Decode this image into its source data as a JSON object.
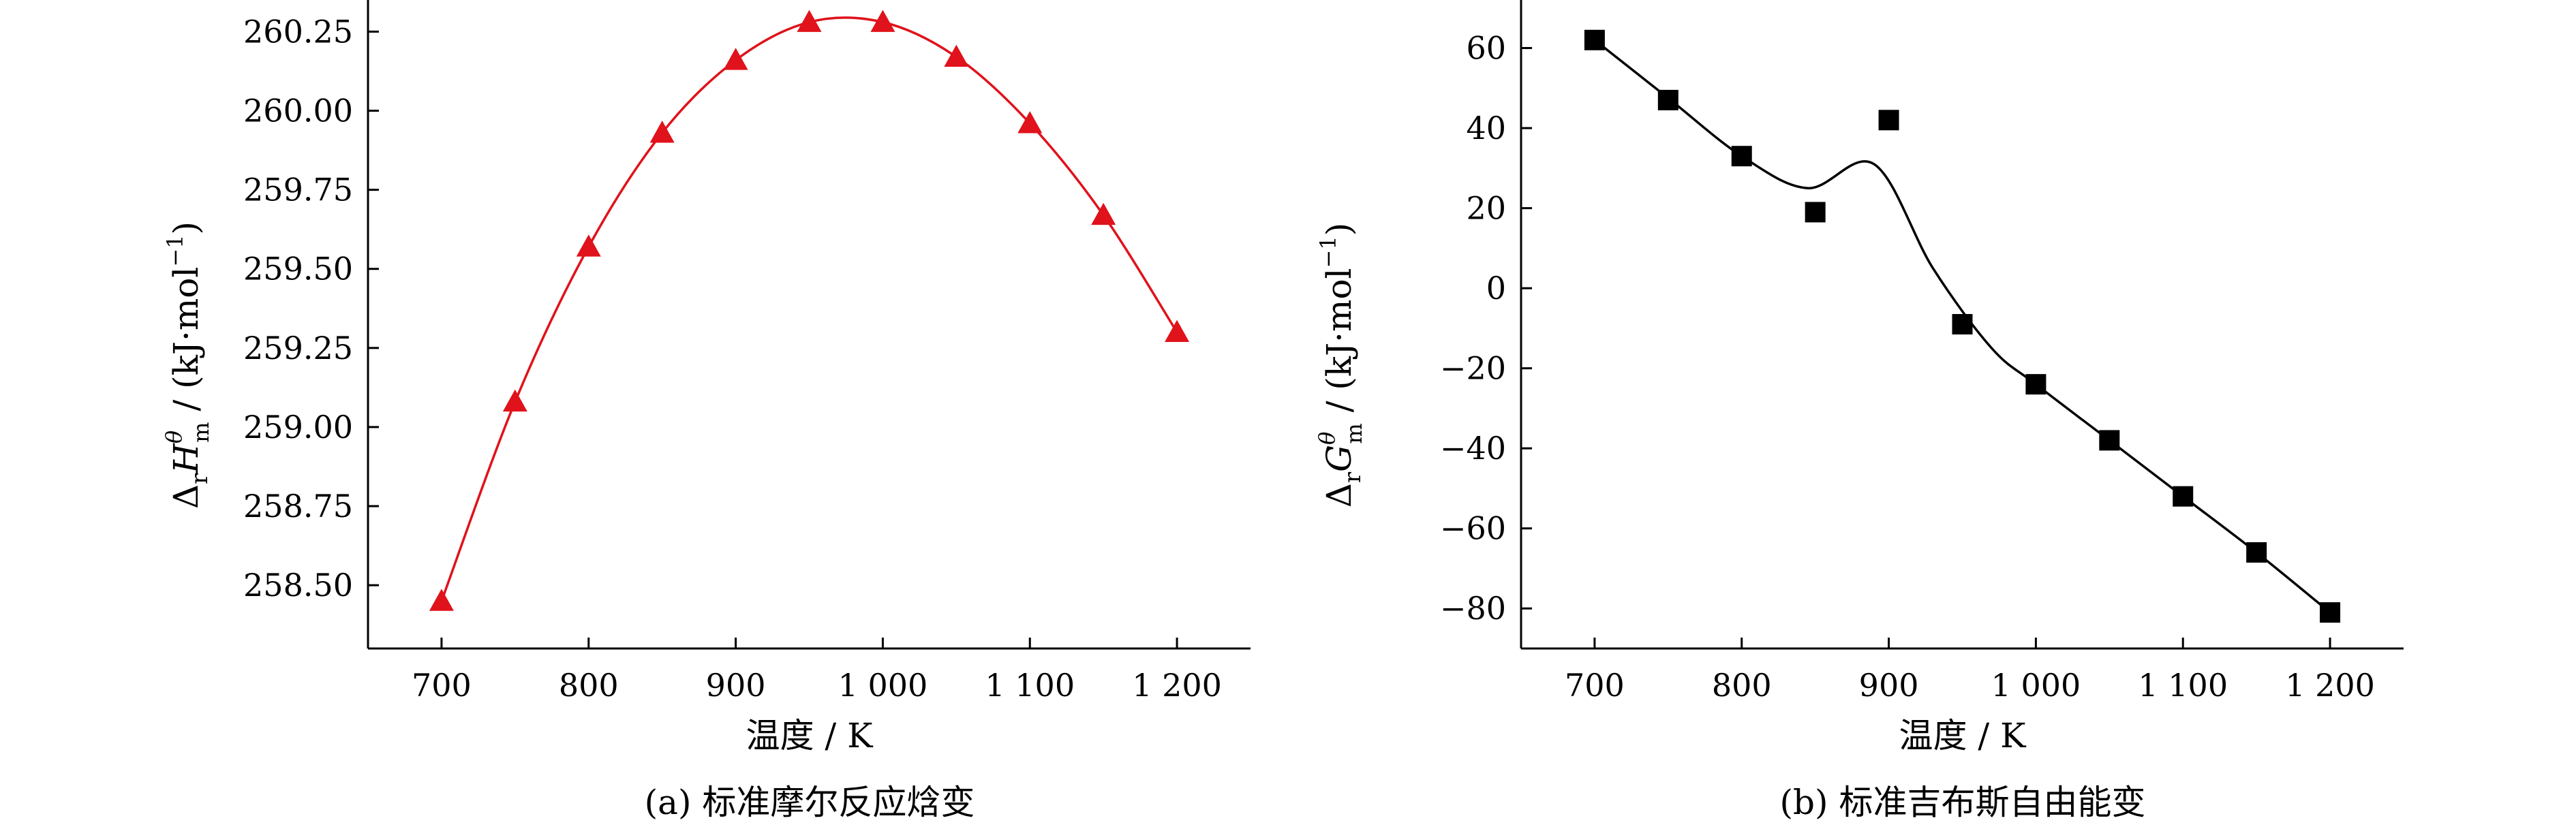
{
  "chart_data": [
    {
      "type": "line",
      "caption": "(a) 标准摩尔反应焓变",
      "xlabel": "温度 / K",
      "ylabel": "ΔrHθm / (kJ·mol⁻¹)",
      "ylabel_parts": {
        "delta": "Δ",
        "sub_r": "r",
        "sym": "H",
        "sup": "θ",
        "sub_m": "m",
        "unit": " / (kJ·mol",
        "unit_exp": "−1",
        "unit_close": ")"
      },
      "xlim": [
        650,
        1250
      ],
      "ylim": [
        258.3,
        260.35
      ],
      "x_ticks": [
        700,
        800,
        900,
        1000,
        1100,
        1200
      ],
      "x_tick_labels": [
        "700",
        "800",
        "900",
        "1 000",
        "1 100",
        "1 200"
      ],
      "y_ticks": [
        258.5,
        258.75,
        259.0,
        259.25,
        259.5,
        259.75,
        260.0,
        260.25
      ],
      "y_tick_labels": [
        "258.50",
        "258.75",
        "259.00",
        "259.25",
        "259.50",
        "259.75",
        "260.00",
        "260.25"
      ],
      "color": "#e0121b",
      "marker": "triangle",
      "x": [
        700,
        750,
        800,
        850,
        900,
        950,
        1000,
        1050,
        1100,
        1150,
        1200
      ],
      "y": [
        258.45,
        259.08,
        259.57,
        259.93,
        260.16,
        260.28,
        260.28,
        260.17,
        259.96,
        259.67,
        259.3
      ]
    },
    {
      "type": "line",
      "caption": "(b) 标准吉布斯自由能变",
      "xlabel": "温度 / K",
      "ylabel": "ΔrGθm / (kJ·mol⁻¹)",
      "ylabel_parts": {
        "delta": "Δ",
        "sub_r": "r",
        "sym": "G",
        "sup": "θ",
        "sub_m": "m",
        "unit": " / (kJ·mol",
        "unit_exp": "−1",
        "unit_close": ")"
      },
      "xlim": [
        650,
        1250
      ],
      "ylim": [
        -90,
        72
      ],
      "x_ticks": [
        700,
        800,
        900,
        1000,
        1100,
        1200
      ],
      "x_tick_labels": [
        "700",
        "800",
        "900",
        "1 000",
        "1 100",
        "1 200"
      ],
      "y_ticks": [
        60,
        40,
        20,
        0,
        -20,
        -40,
        -60,
        -80
      ],
      "y_tick_labels": [
        "60",
        "40",
        "20",
        "0",
        "−20",
        "−40",
        "−60",
        "−80"
      ],
      "color": "#000000",
      "marker": "square",
      "x": [
        700,
        750,
        800,
        850,
        900,
        950,
        1000,
        1050,
        1100,
        1150,
        1200
      ],
      "y": [
        62,
        47,
        33,
        19,
        42,
        -9,
        -24,
        -38,
        -52,
        -66,
        -81
      ]
    }
  ]
}
